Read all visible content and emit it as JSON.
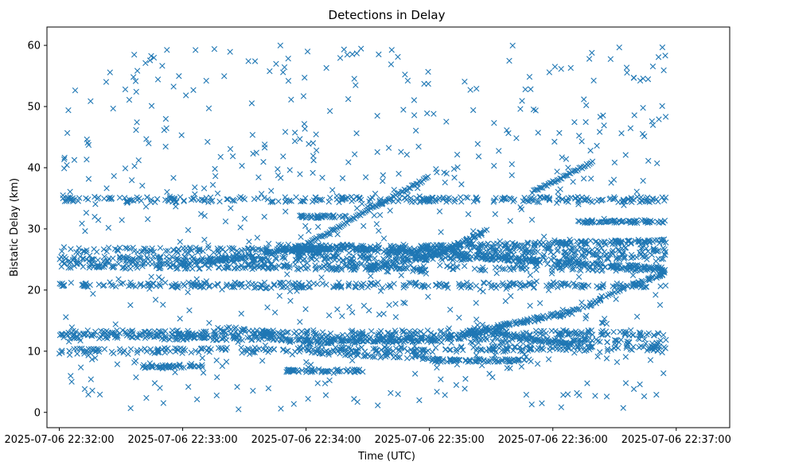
{
  "chart_data": {
    "type": "scatter",
    "title": "Detections in Delay",
    "xlabel": "Time (UTC)",
    "ylabel": "Bistatic Delay (km)",
    "marker": "x",
    "color": "#1f77b4",
    "x_unit": "seconds after 2025-07-06 22:32:00",
    "xlim": [
      -6,
      326
    ],
    "ylim": [
      -2.5,
      63
    ],
    "xticks": [
      {
        "value": 0,
        "label": "2025-07-06 22:32:00"
      },
      {
        "value": 60,
        "label": "2025-07-06 22:33:00"
      },
      {
        "value": 120,
        "label": "2025-07-06 22:34:00"
      },
      {
        "value": 180,
        "label": "2025-07-06 22:35:00"
      },
      {
        "value": 240,
        "label": "2025-07-06 22:36:00"
      },
      {
        "value": 300,
        "label": "2025-07-06 22:37:00"
      }
    ],
    "yticks": [
      {
        "value": 0,
        "label": "0"
      },
      {
        "value": 10,
        "label": "10"
      },
      {
        "value": 20,
        "label": "20"
      },
      {
        "value": 30,
        "label": "30"
      },
      {
        "value": 40,
        "label": "40"
      },
      {
        "value": 50,
        "label": "50"
      },
      {
        "value": 60,
        "label": "60"
      }
    ],
    "series": [
      {
        "name": "Detections",
        "tracks": [
          {
            "x": [
              0,
              295
            ],
            "y": [
              26.5,
              26.5
            ]
          },
          {
            "x": [
              0,
              295
            ],
            "y": [
              25.0,
              25.5
            ]
          },
          {
            "x": [
              0,
              295
            ],
            "y": [
              24.0,
              23.5
            ]
          },
          {
            "x": [
              0,
              295
            ],
            "y": [
              12.5,
              11.5
            ]
          },
          {
            "x": [
              0,
              295
            ],
            "y": [
              10.0,
              10.5
            ]
          },
          {
            "x": [
              115,
              180
            ],
            "y": [
              26.0,
              23.0
            ]
          },
          {
            "x": [
              120,
              180
            ],
            "y": [
              10.0,
              9.0
            ]
          },
          {
            "x": [
              0,
              295
            ],
            "y": [
              34.8,
              34.8
            ]
          },
          {
            "x": [
              0,
              295
            ],
            "y": [
              20.8,
              20.8
            ]
          },
          {
            "x": [
              0,
              295
            ],
            "y": [
              13.0,
              13.0
            ]
          },
          {
            "x": [
              80,
              130
            ],
            "y": [
              14.0,
              11.0
            ]
          },
          {
            "x": [
              105,
              170
            ],
            "y": [
              27.0,
              27.0
            ]
          }
        ],
        "curves": [
          {
            "x": [
              120,
              185,
              250,
              295
            ],
            "y": [
              11.5,
              12.0,
              16.5,
              23.0
            ]
          },
          {
            "x": [
              150,
              185,
              210
            ],
            "y": [
              23.5,
              26.0,
              30.0
            ]
          },
          {
            "x": [
              175,
              230,
              295
            ],
            "y": [
              27.0,
              27.5,
              28.0
            ]
          },
          {
            "x": [
              55,
              100,
              130,
              185,
              240,
              295
            ],
            "y": [
              24.0,
              26.0,
              27.0,
              26.0,
              24.5,
              23.5
            ]
          }
        ],
        "ramps": [
          {
            "x": [
              115,
              180
            ],
            "y": [
              26.5,
              38.5
            ]
          },
          {
            "x": [
              230,
              260
            ],
            "y": [
              36.0,
              41.0
            ]
          },
          {
            "x": [
              210,
              250
            ],
            "y": [
              13.0,
              11.0
            ]
          }
        ],
        "clusters": [
          {
            "x": [
              110,
              150
            ],
            "y": 6.8
          },
          {
            "x": [
              40,
              70
            ],
            "y": 7.5
          },
          {
            "x": [
              180,
              230
            ],
            "y": 8.5
          },
          {
            "x": [
              115,
              140
            ],
            "y": 32.0
          },
          {
            "x": [
              250,
              295
            ],
            "y": 31.2
          }
        ],
        "scatter_count": 650,
        "scatter_xlim": [
          0,
          295
        ],
        "scatter_ylim": [
          0.5,
          60
        ]
      }
    ]
  }
}
